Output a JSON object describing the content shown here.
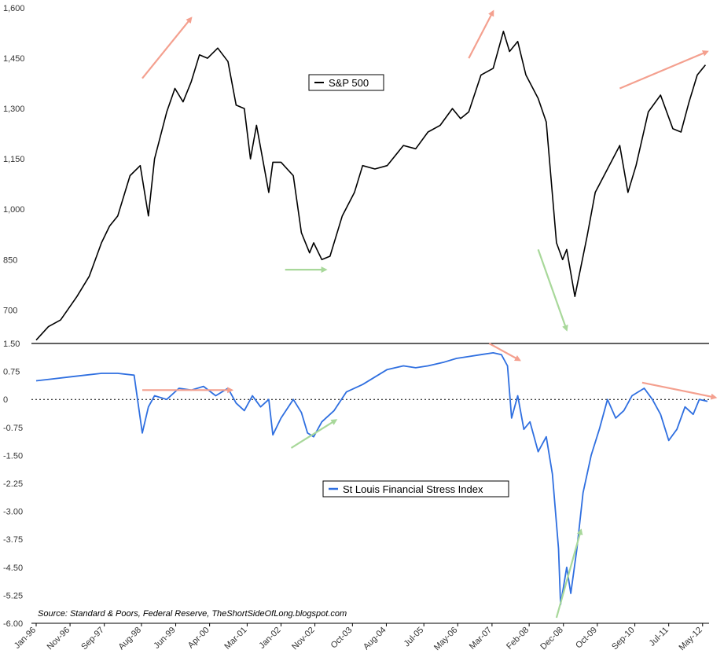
{
  "source_note": "Source: Standard & Poors, Federal Reserve, TheShortSideOfLong.blogspot.com",
  "colors": {
    "sp500_line": "#000000",
    "stress_line": "#2f6fe0",
    "arrow_up": "#f4a08f",
    "arrow_down_green": "#a8d89a",
    "axis": "#000000"
  },
  "chart_data": [
    {
      "type": "line",
      "title": "",
      "legend_placement": "top-center",
      "grid": false,
      "ylim": [
        600,
        1600
      ],
      "yticks": [
        "1,600",
        "1,450",
        "1,300",
        "1,150",
        "1,000",
        "850",
        "700"
      ],
      "ytick_values": [
        1600,
        1450,
        1300,
        1150,
        1000,
        850,
        700
      ],
      "series": [
        {
          "name": "S&P 500",
          "color": "#000000",
          "x": [
            1996.0,
            1996.3,
            1996.6,
            1997.0,
            1997.3,
            1997.6,
            1997.8,
            1998.0,
            1998.3,
            1998.55,
            1998.75,
            1998.9,
            1999.2,
            1999.4,
            1999.6,
            1999.8,
            2000.0,
            2000.2,
            2000.45,
            2000.7,
            2000.9,
            2001.1,
            2001.25,
            2001.4,
            2001.7,
            2001.8,
            2002.0,
            2002.3,
            2002.5,
            2002.7,
            2002.8,
            2003.0,
            2003.2,
            2003.5,
            2003.8,
            2004.0,
            2004.3,
            2004.6,
            2005.0,
            2005.3,
            2005.6,
            2005.9,
            2006.2,
            2006.4,
            2006.6,
            2006.9,
            2007.2,
            2007.45,
            2007.6,
            2007.8,
            2008.0,
            2008.3,
            2008.5,
            2008.75,
            2008.9,
            2009.0,
            2009.2,
            2009.35,
            2009.5,
            2009.7,
            2010.0,
            2010.3,
            2010.5,
            2010.7,
            2011.0,
            2011.3,
            2011.6,
            2011.8,
            2012.0,
            2012.2,
            2012.4
          ],
          "values": [
            610,
            650,
            670,
            740,
            800,
            900,
            950,
            980,
            1100,
            1130,
            980,
            1150,
            1290,
            1360,
            1320,
            1380,
            1460,
            1450,
            1480,
            1440,
            1310,
            1300,
            1150,
            1250,
            1050,
            1140,
            1140,
            1100,
            930,
            870,
            900,
            850,
            860,
            980,
            1050,
            1130,
            1120,
            1130,
            1190,
            1180,
            1230,
            1250,
            1300,
            1270,
            1290,
            1400,
            1420,
            1530,
            1470,
            1500,
            1400,
            1330,
            1260,
            900,
            850,
            880,
            740,
            830,
            920,
            1050,
            1120,
            1190,
            1050,
            1130,
            1290,
            1340,
            1240,
            1230,
            1320,
            1400,
            1430
          ]
        }
      ],
      "annotations": [
        {
          "kind": "arrow",
          "color": "#f4a08f",
          "from": [
            1998.6,
            1390
          ],
          "to": [
            1999.8,
            1570
          ]
        },
        {
          "kind": "arrow",
          "color": "#f4a08f",
          "from": [
            2006.6,
            1450
          ],
          "to": [
            2007.2,
            1590
          ]
        },
        {
          "kind": "arrow",
          "color": "#f4a08f",
          "from": [
            2010.3,
            1360
          ],
          "to": [
            2012.45,
            1470
          ]
        },
        {
          "kind": "arrow",
          "color": "#a8d89a",
          "from": [
            2002.1,
            820
          ],
          "to": [
            2003.1,
            820
          ]
        },
        {
          "kind": "arrow",
          "color": "#a8d89a",
          "from": [
            2008.3,
            880
          ],
          "to": [
            2009.0,
            640
          ]
        }
      ]
    },
    {
      "type": "line",
      "title": "",
      "legend_placement": "center",
      "grid": false,
      "ylim": [
        -6.0,
        1.5
      ],
      "zero_line": "dashed",
      "yticks": [
        "1.50",
        "0.75",
        "0",
        "-0.75",
        "-1.50",
        "-2.25",
        "-3.00",
        "-3.75",
        "-4.50",
        "-5.25",
        "-6.00"
      ],
      "ytick_values": [
        1.5,
        0.75,
        0,
        -0.75,
        -1.5,
        -2.25,
        -3.0,
        -3.75,
        -4.5,
        -5.25,
        -6.0
      ],
      "categories": [
        "Jan-96",
        "Nov-96",
        "Sep-97",
        "Aug-98",
        "Jun-99",
        "Apr-00",
        "Mar-01",
        "Jan-02",
        "Nov-02",
        "Oct-03",
        "Aug-04",
        "Jul-05",
        "May-06",
        "Mar-07",
        "Feb-08",
        "Dec-08",
        "Oct-09",
        "Sep-10",
        "Jul-11",
        "May-12"
      ],
      "category_x": [
        1996.0,
        1996.83,
        1997.67,
        1998.58,
        1999.42,
        2000.25,
        2001.17,
        2002.0,
        2002.83,
        2003.75,
        2004.58,
        2005.5,
        2006.33,
        2007.17,
        2008.08,
        2008.92,
        2009.75,
        2010.67,
        2011.5,
        2012.33
      ],
      "series": [
        {
          "name": "St Louis Financial Stress Index",
          "color": "#2f6fe0",
          "x": [
            1996.0,
            1996.4,
            1996.8,
            1997.2,
            1997.6,
            1998.0,
            1998.4,
            1998.6,
            1998.75,
            1998.9,
            1999.2,
            1999.5,
            1999.8,
            2000.1,
            2000.4,
            2000.7,
            2000.9,
            2001.1,
            2001.3,
            2001.5,
            2001.7,
            2001.8,
            2002.0,
            2002.3,
            2002.5,
            2002.65,
            2002.8,
            2003.0,
            2003.3,
            2003.6,
            2004.0,
            2004.3,
            2004.6,
            2005.0,
            2005.3,
            2005.6,
            2006.0,
            2006.3,
            2006.6,
            2006.9,
            2007.2,
            2007.4,
            2007.55,
            2007.65,
            2007.8,
            2007.95,
            2008.1,
            2008.3,
            2008.5,
            2008.65,
            2008.8,
            2008.85,
            2009.0,
            2009.1,
            2009.25,
            2009.4,
            2009.6,
            2009.8,
            2010.0,
            2010.2,
            2010.4,
            2010.6,
            2010.9,
            2011.1,
            2011.3,
            2011.5,
            2011.7,
            2011.9,
            2012.1,
            2012.25,
            2012.45
          ],
          "values": [
            0.5,
            0.55,
            0.6,
            0.65,
            0.7,
            0.7,
            0.65,
            -0.9,
            -0.2,
            0.1,
            0.0,
            0.3,
            0.25,
            0.35,
            0.1,
            0.3,
            -0.1,
            -0.3,
            0.1,
            -0.2,
            0.0,
            -0.95,
            -0.5,
            0.0,
            -0.35,
            -0.9,
            -1.0,
            -0.6,
            -0.3,
            0.2,
            0.4,
            0.6,
            0.8,
            0.9,
            0.85,
            0.9,
            1.0,
            1.1,
            1.15,
            1.2,
            1.25,
            1.2,
            0.9,
            -0.5,
            0.1,
            -0.8,
            -0.6,
            -1.4,
            -1.0,
            -2.0,
            -4.0,
            -5.5,
            -4.5,
            -5.2,
            -4.0,
            -2.5,
            -1.5,
            -0.8,
            0.0,
            -0.5,
            -0.3,
            0.1,
            0.3,
            0.0,
            -0.4,
            -1.1,
            -0.8,
            -0.2,
            -0.4,
            0.0,
            -0.05
          ]
        }
      ],
      "annotations": [
        {
          "kind": "arrow",
          "color": "#f4a08f",
          "from": [
            1998.6,
            0.25
          ],
          "to": [
            2000.8,
            0.25
          ]
        },
        {
          "kind": "arrow",
          "color": "#f4a08f",
          "from": [
            2007.1,
            1.5
          ],
          "to": [
            2007.85,
            1.05
          ]
        },
        {
          "kind": "arrow",
          "color": "#f4a08f",
          "from": [
            2010.85,
            0.45
          ],
          "to": [
            2012.65,
            0.05
          ]
        },
        {
          "kind": "arrow",
          "color": "#a8d89a",
          "from": [
            2002.25,
            -1.3
          ],
          "to": [
            2003.35,
            -0.55
          ]
        },
        {
          "kind": "arrow",
          "color": "#a8d89a",
          "from": [
            2008.75,
            -5.85
          ],
          "to": [
            2009.35,
            -3.5
          ]
        }
      ]
    }
  ]
}
